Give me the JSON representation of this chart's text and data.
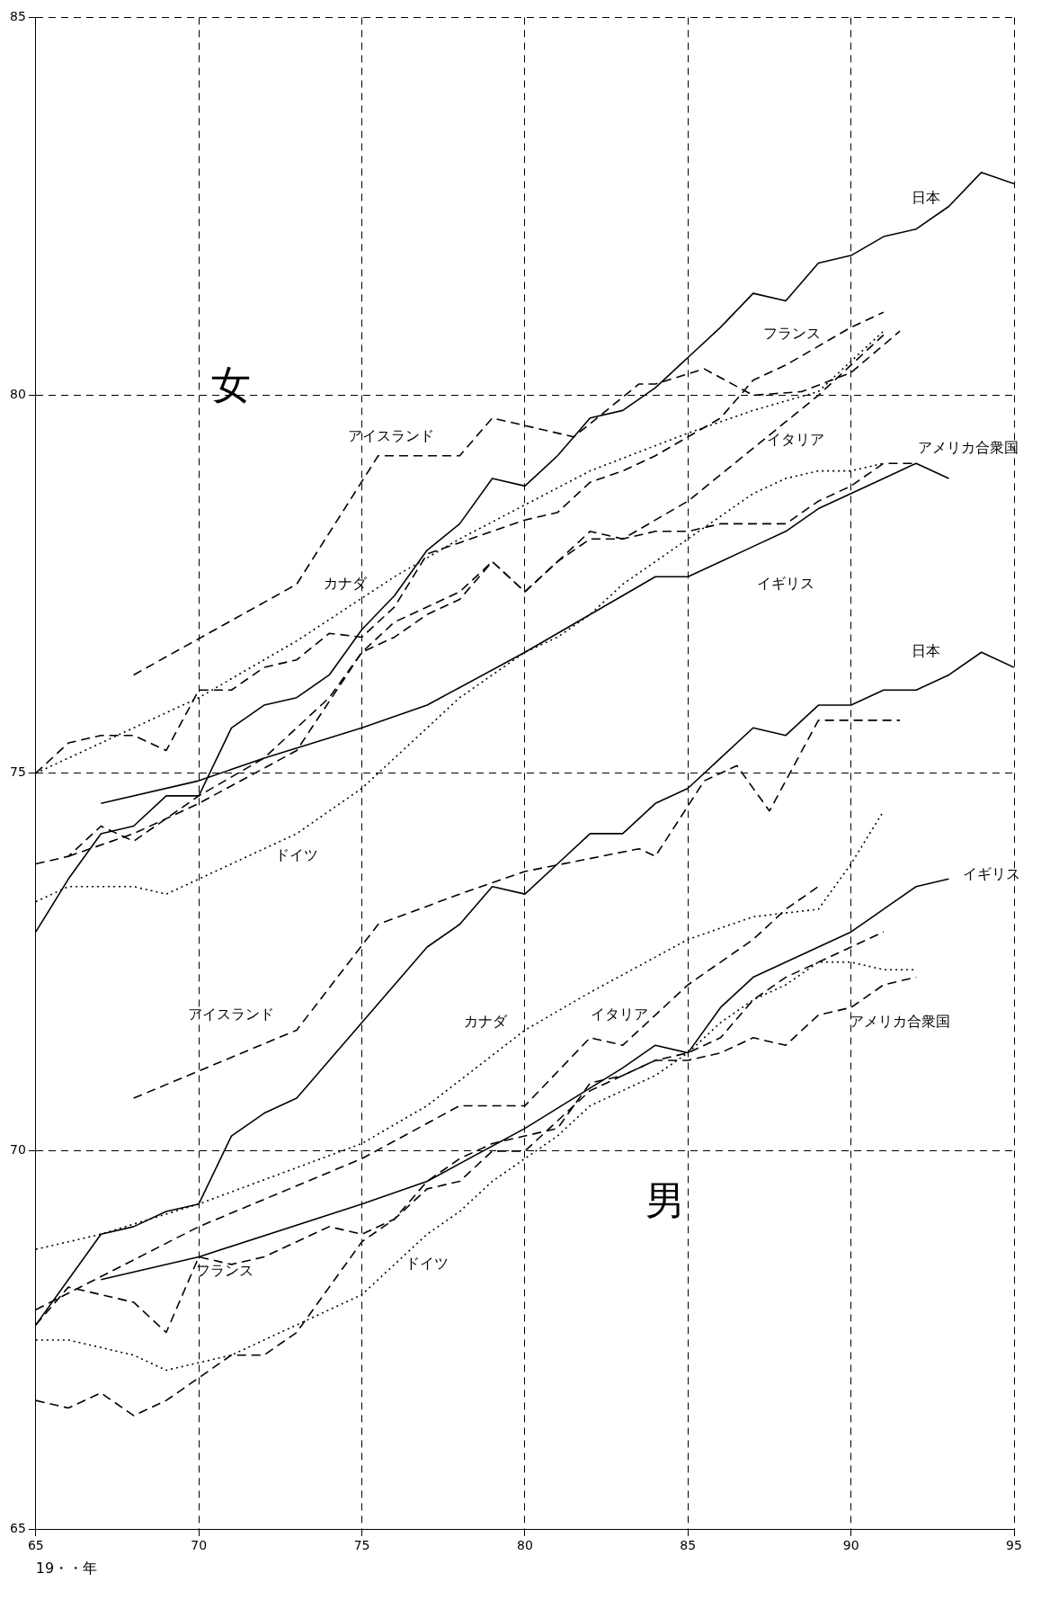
{
  "chart_data": {
    "type": "line",
    "xlabel": "19・・年",
    "xlim": [
      65,
      95
    ],
    "xticks": [
      65,
      70,
      75,
      80,
      85,
      90,
      95
    ],
    "ylim": [
      65,
      85
    ],
    "yticks": [
      65,
      70,
      75,
      80,
      85
    ],
    "grid": true,
    "legend": false,
    "marker": "none",
    "series": [
      {
        "name": "日本",
        "color": "#000000",
        "line_style": "solid",
        "x": [
          65,
          66,
          67,
          68,
          69,
          70,
          71,
          72,
          73,
          74,
          75,
          76,
          77,
          78,
          79,
          80,
          81,
          82,
          83,
          84,
          85,
          86,
          87,
          88,
          89,
          90,
          91,
          92,
          93,
          94,
          95
        ],
        "values": [
          72.9,
          73.6,
          74.2,
          74.3,
          74.7,
          74.7,
          75.6,
          75.9,
          76.0,
          76.3,
          76.9,
          77.35,
          77.95,
          78.3,
          78.9,
          78.8,
          79.2,
          79.7,
          79.8,
          80.1,
          80.5,
          80.9,
          81.35,
          81.25,
          81.75,
          81.85,
          82.1,
          82.2,
          82.5,
          82.95,
          82.8
        ]
      },
      {
        "name": "アイスランド",
        "color": "#000000",
        "line_style": "dashed",
        "x": [
          68,
          73,
          75.5,
          78,
          79,
          80,
          81.5,
          83.5,
          84,
          85.5,
          87,
          88.5,
          90,
          91.5
        ],
        "values": [
          76.3,
          77.5,
          79.2,
          79.2,
          79.7,
          79.6,
          79.45,
          80.15,
          80.15,
          80.35,
          80.0,
          80.05,
          80.3,
          80.85
        ]
      },
      {
        "name": "フランス",
        "color": "#000000",
        "line_style": "dashed",
        "x": [
          65,
          66,
          67,
          68,
          69,
          70,
          71,
          72,
          73,
          74,
          75,
          76,
          77,
          78,
          79,
          80,
          81,
          82,
          83,
          84,
          85,
          86,
          87,
          88,
          89,
          90,
          91
        ],
        "values": [
          75.0,
          75.4,
          75.5,
          75.5,
          75.3,
          76.1,
          76.1,
          76.4,
          76.5,
          76.85,
          76.8,
          77.2,
          77.9,
          78.05,
          78.2,
          78.35,
          78.45,
          78.85,
          79.0,
          79.2,
          79.45,
          79.7,
          80.2,
          80.4,
          80.65,
          80.9,
          81.1
        ]
      },
      {
        "name": "カナダ",
        "color": "#000000",
        "line_style": "dotted",
        "x": [
          65,
          70,
          73,
          76,
          78,
          80,
          82,
          85,
          87,
          89,
          91
        ],
        "values": [
          75.0,
          76.0,
          76.75,
          77.6,
          78.1,
          78.55,
          79.0,
          79.5,
          79.8,
          80.05,
          80.85
        ]
      },
      {
        "name": "イタリア",
        "color": "#000000",
        "line_style": "dashed",
        "x": [
          66,
          68,
          70,
          73,
          75,
          76,
          78,
          79,
          80,
          82,
          83,
          85,
          87,
          89,
          91
        ],
        "values": [
          73.9,
          74.2,
          74.6,
          75.3,
          76.6,
          77.0,
          77.4,
          77.8,
          77.4,
          78.2,
          78.1,
          78.6,
          79.3,
          80.0,
          80.8
        ]
      },
      {
        "name": "アメリカ合衆国",
        "color": "#000000",
        "line_style": "dashed",
        "x": [
          65,
          66,
          67,
          68,
          70,
          72,
          74,
          75,
          76,
          77,
          78,
          79,
          80,
          81,
          82,
          83,
          84,
          85,
          86,
          87,
          88,
          89,
          90,
          91,
          92
        ],
        "values": [
          73.8,
          73.9,
          74.3,
          74.1,
          74.7,
          75.2,
          76.0,
          76.6,
          76.8,
          77.1,
          77.3,
          77.8,
          77.4,
          77.8,
          78.1,
          78.1,
          78.2,
          78.2,
          78.3,
          78.3,
          78.3,
          78.6,
          78.8,
          79.1,
          79.1
        ]
      },
      {
        "name": "ドイツ",
        "color": "#000000",
        "line_style": "dotted",
        "x": [
          65,
          66,
          67,
          68,
          69,
          70,
          71,
          72,
          73,
          74,
          75,
          76,
          77,
          78,
          79,
          80,
          81,
          82,
          83,
          84,
          85,
          86,
          87,
          88,
          89,
          90,
          91
        ],
        "values": [
          73.3,
          73.5,
          73.5,
          73.5,
          73.4,
          73.6,
          73.8,
          74.0,
          74.2,
          74.5,
          74.8,
          75.2,
          75.6,
          76.0,
          76.3,
          76.6,
          76.8,
          77.1,
          77.5,
          77.8,
          78.1,
          78.4,
          78.7,
          78.9,
          79.0,
          79.0,
          79.1
        ]
      },
      {
        "name": "イギリス",
        "color": "#000000",
        "line_style": "solid",
        "x": [
          67,
          70,
          72,
          75,
          77,
          80,
          82,
          84,
          85,
          86,
          87,
          88,
          89,
          90,
          91,
          92,
          93
        ],
        "values": [
          74.6,
          74.9,
          75.2,
          75.6,
          75.9,
          76.6,
          77.1,
          77.6,
          77.6,
          77.8,
          78.0,
          78.2,
          78.5,
          78.7,
          78.9,
          79.1,
          78.9
        ]
      },
      {
        "name": "日本",
        "color": "#000000",
        "line_style": "solid",
        "x": [
          65,
          66,
          67,
          68,
          69,
          70,
          71,
          72,
          73,
          74,
          75,
          76,
          77,
          78,
          79,
          80,
          81,
          82,
          83,
          84,
          85,
          86,
          87,
          88,
          89,
          90,
          91,
          92,
          93,
          94,
          95
        ],
        "values": [
          67.7,
          68.3,
          68.9,
          69.0,
          69.2,
          69.3,
          70.2,
          70.5,
          70.7,
          71.2,
          71.7,
          72.2,
          72.7,
          73.0,
          73.5,
          73.4,
          73.8,
          74.2,
          74.2,
          74.6,
          74.8,
          75.2,
          75.6,
          75.5,
          75.9,
          75.9,
          76.1,
          76.1,
          76.3,
          76.6,
          76.4
        ]
      },
      {
        "name": "アイスランド",
        "color": "#000000",
        "line_style": "dashed",
        "x": [
          68,
          73,
          75.5,
          78,
          80,
          83.5,
          84,
          85.5,
          86.5,
          87.5,
          89,
          91.5
        ],
        "values": [
          70.7,
          71.6,
          73.0,
          73.4,
          73.7,
          74.0,
          73.9,
          74.9,
          75.1,
          74.5,
          75.7,
          75.7
        ]
      },
      {
        "name": "フランス",
        "color": "#000000",
        "line_style": "dashed",
        "x": [
          65,
          66,
          67,
          68,
          69,
          70,
          71,
          72,
          73,
          74,
          75,
          76,
          77,
          78,
          79,
          80,
          81,
          82,
          83,
          84,
          85,
          86,
          87,
          88,
          89,
          90,
          91
        ],
        "values": [
          67.7,
          68.2,
          68.1,
          68.0,
          67.6,
          68.6,
          68.5,
          68.6,
          68.8,
          69.0,
          68.9,
          69.1,
          69.6,
          69.9,
          70.1,
          70.2,
          70.3,
          70.9,
          71.0,
          71.2,
          71.3,
          71.5,
          72.0,
          72.3,
          72.5,
          72.7,
          72.9
        ]
      },
      {
        "name": "カナダ",
        "color": "#000000",
        "line_style": "dotted",
        "x": [
          65,
          67,
          70,
          75,
          77,
          80,
          82,
          85,
          87,
          89,
          90,
          91
        ],
        "values": [
          68.7,
          68.9,
          69.3,
          70.1,
          70.6,
          71.6,
          72.1,
          72.8,
          73.1,
          73.2,
          73.8,
          74.5
        ]
      },
      {
        "name": "イタリア",
        "color": "#000000",
        "line_style": "dashed",
        "x": [
          65,
          70,
          75,
          78,
          80,
          82,
          83,
          84,
          85,
          87,
          88,
          89
        ],
        "values": [
          67.9,
          69.0,
          69.9,
          70.6,
          70.6,
          71.5,
          71.4,
          71.8,
          72.2,
          72.8,
          73.2,
          73.5
        ]
      },
      {
        "name": "アメリカ合衆国",
        "color": "#000000",
        "line_style": "dashed",
        "x": [
          65,
          66,
          67,
          68,
          69,
          70,
          71,
          72,
          73,
          74,
          75,
          76,
          77,
          78,
          79,
          80,
          81,
          82,
          83,
          84,
          85,
          86,
          87,
          88,
          89,
          90,
          91,
          92
        ],
        "values": [
          66.7,
          66.6,
          66.8,
          66.5,
          66.7,
          67.0,
          67.3,
          67.3,
          67.6,
          68.2,
          68.8,
          69.1,
          69.5,
          69.6,
          70.0,
          70.0,
          70.4,
          70.8,
          71.0,
          71.2,
          71.2,
          71.3,
          71.5,
          71.4,
          71.8,
          71.9,
          72.2,
          72.3
        ]
      },
      {
        "name": "ドイツ",
        "color": "#000000",
        "line_style": "dotted",
        "x": [
          65,
          66,
          67,
          68,
          69,
          70,
          71,
          72,
          73,
          74,
          75,
          76,
          77,
          78,
          79,
          80,
          81,
          82,
          83,
          84,
          85,
          86,
          87,
          88,
          89,
          90,
          91,
          92
        ],
        "values": [
          67.5,
          67.5,
          67.4,
          67.3,
          67.1,
          67.2,
          67.3,
          67.5,
          67.7,
          67.9,
          68.1,
          68.5,
          68.9,
          69.2,
          69.6,
          69.9,
          70.2,
          70.6,
          70.8,
          71.0,
          71.3,
          71.7,
          72.0,
          72.2,
          72.5,
          72.5,
          72.4,
          72.4
        ]
      },
      {
        "name": "イギリス",
        "color": "#000000",
        "line_style": "solid",
        "x": [
          67,
          70,
          75,
          77,
          80,
          83,
          84,
          85,
          86,
          87,
          88,
          89,
          90,
          91,
          92,
          93
        ],
        "values": [
          68.3,
          68.6,
          69.3,
          69.6,
          70.3,
          71.1,
          71.4,
          71.3,
          71.9,
          72.3,
          72.5,
          72.7,
          72.9,
          73.2,
          73.5,
          73.6
        ]
      }
    ],
    "annotations": [
      "女",
      "男"
    ]
  }
}
